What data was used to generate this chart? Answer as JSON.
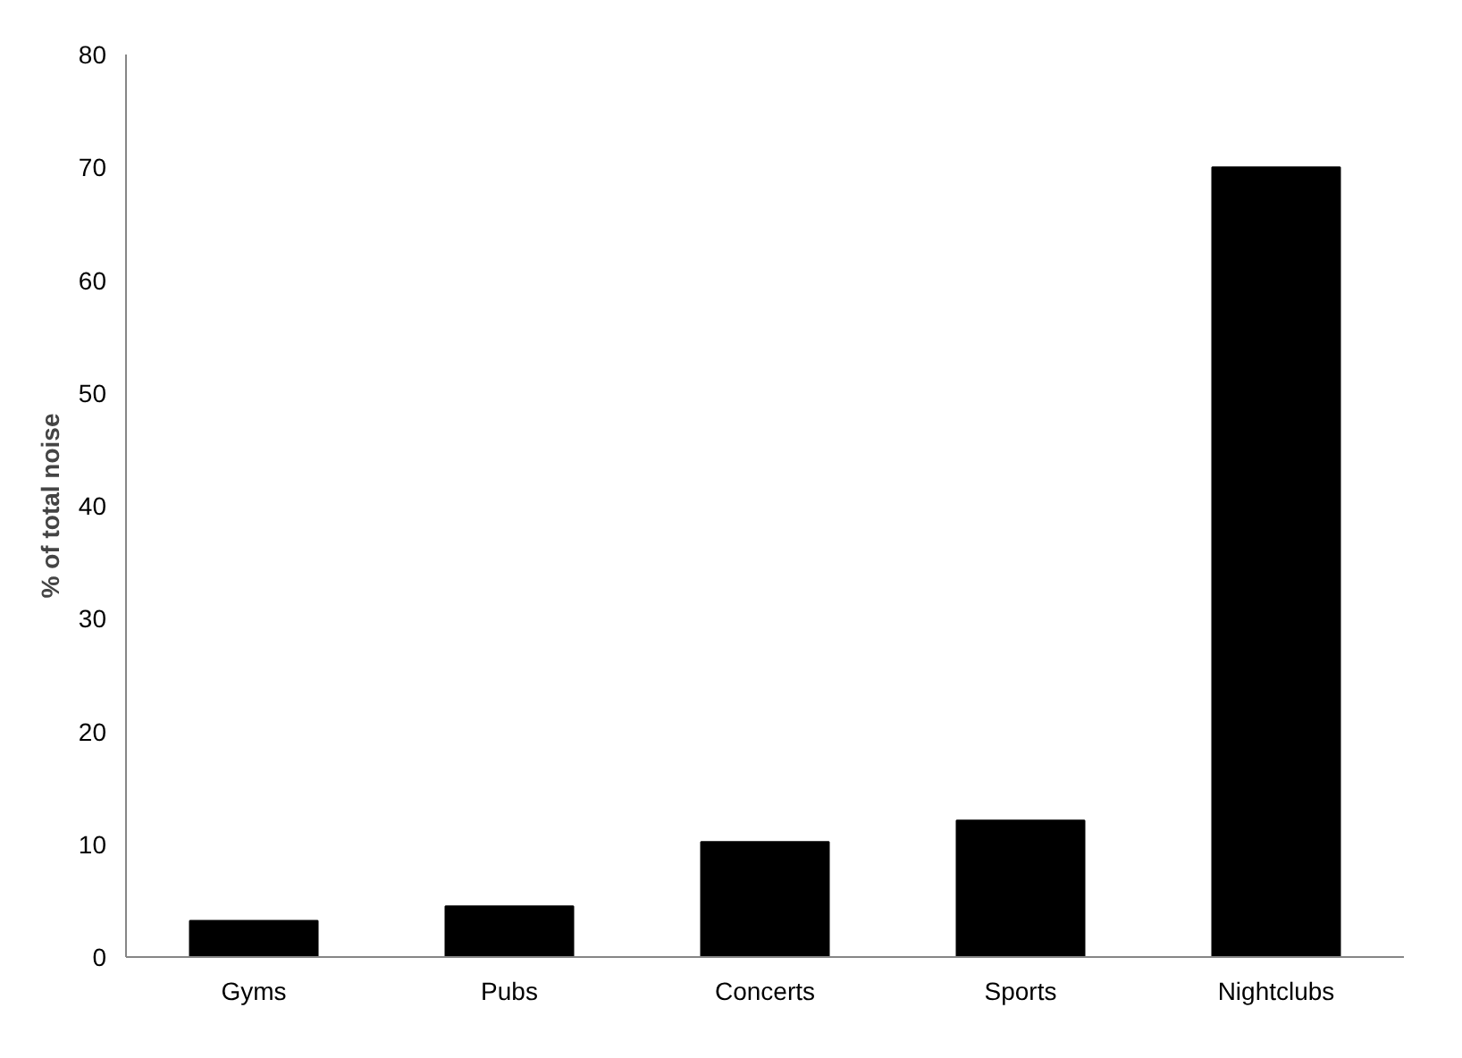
{
  "chart_data": {
    "type": "bar",
    "ylabel": "% of total noise",
    "categories": [
      "Gyms",
      "Pubs",
      "Concerts",
      "Sports",
      "Nightclubs"
    ],
    "values": [
      3.2,
      4.5,
      10.2,
      12.1,
      70
    ],
    "color": "#000000",
    "ylim": [
      0,
      80
    ],
    "yticks": [
      0,
      10,
      20,
      30,
      40,
      50,
      60,
      70,
      80
    ],
    "grid": false
  }
}
